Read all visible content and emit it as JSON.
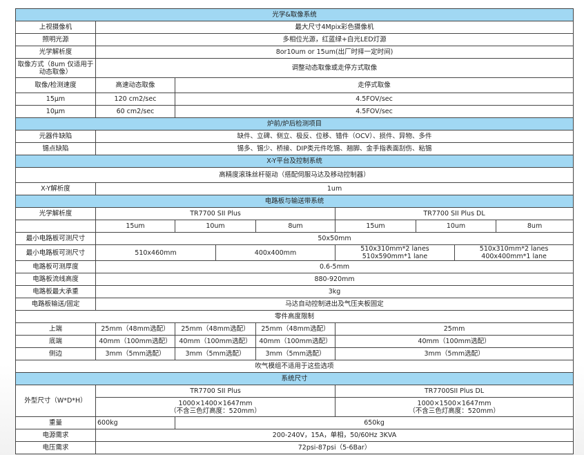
{
  "optics": {
    "header": "光学&取像系统",
    "camera_label": "上视摄像机",
    "camera_value": "最大尺寸4Mpix彩色摄像机",
    "light_label": "照明光源",
    "light_value": "多相位光源，红蓝绿+白光LED灯源",
    "resolution_label": "光学解析度",
    "resolution_value": "8or10um or 15um(出厂时择一定时间)",
    "mode_label_1": "取像方式（8um 仅适用于",
    "mode_label_2": "动态取像）",
    "mode_value": "调整动态取像或走停方式取像",
    "speed_label": "取像/检测速度",
    "speed_col1": "高速动态取像",
    "speed_col2": "走停式取像",
    "speed_rows": [
      {
        "res": "15μm",
        "dynamic": "120 cm2/sec",
        "stepstop": "4.5FOV/sec"
      },
      {
        "res": "10μm",
        "dynamic": "60 cm2/sec",
        "stepstop": "4.5FOV/sec"
      }
    ]
  },
  "inspection": {
    "header": "炉前/炉后检测项目",
    "component_label": "元器件缺陷",
    "component_value": "缺件、立碑、侧立、极反、位移、错件（OCV）、损件、异物、多件",
    "solder_label": "锡点缺陷",
    "solder_value": "锡多、锡少、桥接、DIP类元件吃锡、翘脚、金手指表面刮伤、粘锡"
  },
  "xy": {
    "header": "X-Y平台及控制系统",
    "drive": "高精度滚珠丝杆驱动（搭配伺服马达及移动控制器）",
    "resolution_label": "X-Y解析度",
    "resolution_value": "1um"
  },
  "pcb": {
    "header": "电路板与输送带系统",
    "optical_label": "光学解析度",
    "model_a": "TR7700 SII Plus",
    "model_b": "TR7700 SII Plus DL",
    "res": [
      "15um",
      "10um",
      "8um",
      "15um",
      "10um",
      "8um"
    ],
    "min_label": "最小电路板可测尺寸",
    "min_value": "50x50mm",
    "max_label": "最小电路板可测尺寸",
    "max_a1": "510x460mm",
    "max_a2": "400x400mm",
    "max_b1_1": "510x310mm*2 lanes",
    "max_b1_2": "510x590mm*1 lane",
    "max_b2_1": "510x310mm*2 lanes",
    "max_b2_2": "400x400mm*1 lane",
    "thickness_label": "电路板可测厚度",
    "thickness_value": "0.6-5mm",
    "line_label": "电路板流线高度",
    "line_value": "880-920mm",
    "weight_label": "电路板最大承重",
    "weight_value": "3kg",
    "convey_label": "电路板输送/固定",
    "convey_value": "马达自动控制进出及气压夹板固定",
    "height_header": "零件高度限制",
    "top_label": "上端",
    "top": [
      "25mm（48mm选配）",
      "25mm（48mm选配）",
      "25mm（48mm选配）",
      "25mm"
    ],
    "bottom_label": "底端",
    "bottom": [
      "40mm（100mm选配）",
      "40mm（100mm选配）",
      "40mm（100mm选配）",
      "40mm（100mm选配）"
    ],
    "side_label": "侧边",
    "side": [
      "3mm（5mm选配）",
      "3mm（5mm选配）",
      "3mm（5mm选配）",
      "3mm（5mm选配）"
    ],
    "note": "吹气模组不适用于这些选项"
  },
  "system": {
    "header": "系统尺寸",
    "dim_label": "外型尺寸（W*D*H）",
    "model_a": "TR7700 SII Plus",
    "model_b": "TR7700SII Plus DL",
    "dim_a1": "1000×1400×1647mm",
    "dim_a2": "（不含三色灯高度：520mm）",
    "dim_b1": "1000×1500×1647mm",
    "dim_b2": "（不含三色灯高度：520mm）",
    "weight_label": "重量",
    "weight_a": "600kg",
    "weight_b": "650kg",
    "power_label": "电源需求",
    "power_value": "200-240V，15A，单相，50/60Hz 3KVA",
    "air_label": "电压需求",
    "air_value": "72psi-87psi（5-6Bar）"
  },
  "colors": {
    "header_fill": "#a1d8f3",
    "border": "#444444"
  }
}
